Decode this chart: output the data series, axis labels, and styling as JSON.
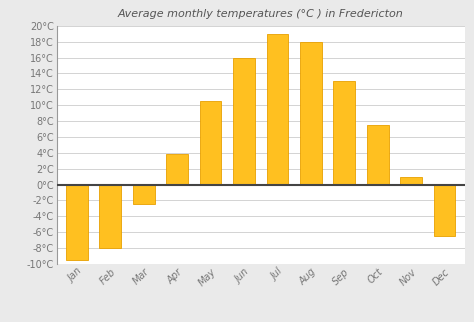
{
  "title": "Average monthly temperatures (°C ) in Fredericton",
  "months": [
    "Jan",
    "Feb",
    "Mar",
    "Apr",
    "May",
    "Jun",
    "Jul",
    "Aug",
    "Sep",
    "Oct",
    "Nov",
    "Dec"
  ],
  "values": [
    -9.5,
    -8.0,
    -2.5,
    3.8,
    10.5,
    16.0,
    19.0,
    18.0,
    13.0,
    7.5,
    1.0,
    -6.5
  ],
  "bar_color": "#FFC020",
  "bar_edge_color": "#E8A000",
  "ylim": [
    -10,
    20
  ],
  "yticks": [
    -10,
    -8,
    -6,
    -4,
    -2,
    0,
    2,
    4,
    6,
    8,
    10,
    12,
    14,
    16,
    18,
    20
  ],
  "ytick_labels": [
    "-10°C",
    "-8°C",
    "-6°C",
    "-4°C",
    "-2°C",
    "0°C",
    "2°C",
    "4°C",
    "6°C",
    "8°C",
    "10°C",
    "12°C",
    "14°C",
    "16°C",
    "18°C",
    "20°C"
  ],
  "background_color": "#eaeaea",
  "plot_bg_color": "#ffffff",
  "grid_color": "#cccccc",
  "title_fontsize": 8,
  "tick_fontsize": 7,
  "zero_line_color": "#444444",
  "spine_color": "#999999"
}
